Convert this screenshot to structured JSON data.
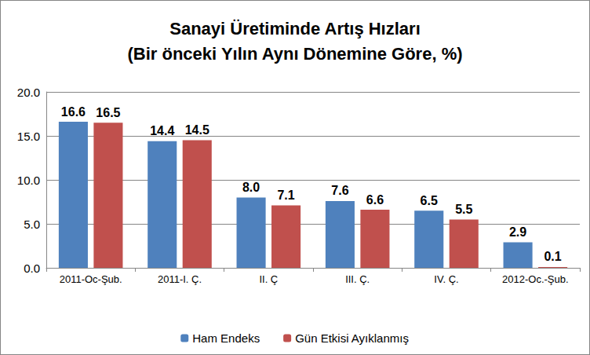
{
  "chart_data": {
    "type": "bar",
    "title": "Sanayi Üretiminde Artış Hızları\n(Bir önceki Yılın Aynı Dönemine Göre, %)",
    "categories": [
      "2011-Oc-Şub.",
      "2011-I. Ç.",
      "II. Ç",
      "III. Ç.",
      "IV. Ç.",
      "2012-Oc.-Şub."
    ],
    "series": [
      {
        "name": "Ham Endeks",
        "color": "#4f81bd",
        "values": [
          16.6,
          14.4,
          8.0,
          7.6,
          6.5,
          2.9
        ],
        "value_labels": [
          "16.6",
          "14.4",
          "8.0",
          "7.6",
          "6.5",
          "2.9"
        ]
      },
      {
        "name": "Gün Etkisi Ayıklanmış",
        "color": "#c0504d",
        "values": [
          16.5,
          14.5,
          7.1,
          6.6,
          5.5,
          0.1
        ],
        "value_labels": [
          "16.5",
          "14.5",
          "7.1",
          "6.6",
          "5.5",
          "0.1"
        ]
      }
    ],
    "ylim": [
      0,
      20
    ],
    "yticks": [
      {
        "value": 0,
        "label": "0.0"
      },
      {
        "value": 5,
        "label": "5.0"
      },
      {
        "value": 10,
        "label": "10.0"
      },
      {
        "value": 15,
        "label": "15.0"
      },
      {
        "value": 20,
        "label": "20.0"
      }
    ],
    "grid": true,
    "legend": "bottom",
    "data_labels": true
  }
}
